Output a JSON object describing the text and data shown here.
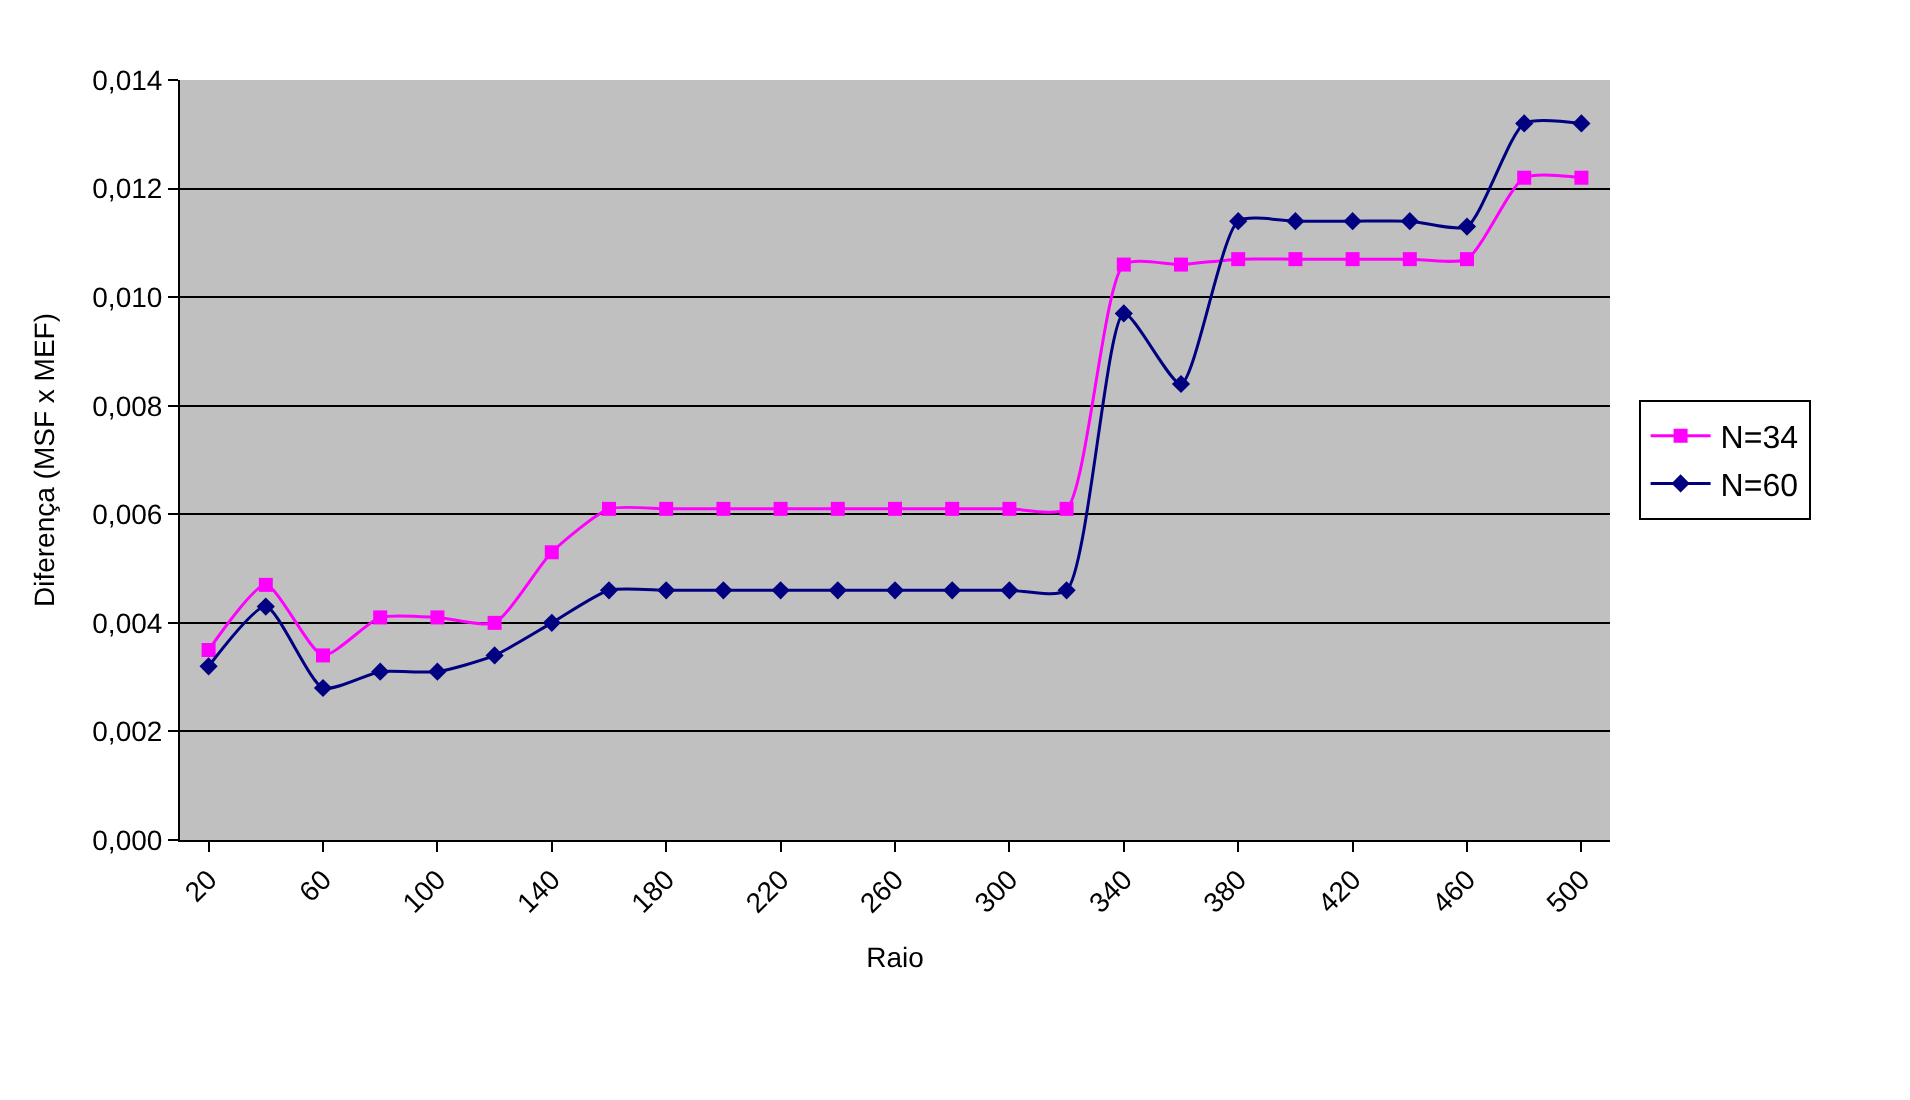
{
  "chart_data": {
    "type": "line",
    "xlabel": "Raio",
    "ylabel": "Diferença (MSF x MEF)",
    "categories": [
      "20",
      null,
      "60",
      null,
      "100",
      null,
      "140",
      null,
      "180",
      null,
      "220",
      null,
      "260",
      null,
      "300",
      null,
      "340",
      null,
      "380",
      null,
      "420",
      null,
      "460",
      null,
      "500"
    ],
    "series": [
      {
        "name": "N=34",
        "color": "#ff00ff",
        "marker": "square",
        "values": [
          0.0035,
          0.0047,
          0.0034,
          0.0041,
          0.0041,
          0.004,
          0.0053,
          0.0061,
          0.0061,
          0.0061,
          0.0061,
          0.0061,
          0.0061,
          0.0061,
          0.0061,
          0.0061,
          0.0106,
          0.0106,
          0.0107,
          0.0107,
          0.0107,
          0.0107,
          0.0107,
          0.0122,
          0.0122
        ]
      },
      {
        "name": "N=60",
        "color": "#000080",
        "marker": "diamond",
        "values": [
          0.0032,
          0.0043,
          0.0028,
          0.0031,
          0.0031,
          0.0034,
          0.004,
          0.0046,
          0.0046,
          0.0046,
          0.0046,
          0.0046,
          0.0046,
          0.0046,
          0.0046,
          0.0046,
          0.0097,
          0.0084,
          0.0114,
          0.0114,
          0.0114,
          0.0114,
          0.0113,
          0.0132,
          0.0132
        ]
      }
    ],
    "ylim": [
      0,
      0.014
    ],
    "yticks": [
      {
        "value": 0,
        "label": "0,000"
      },
      {
        "value": 0.002,
        "label": "0,002"
      },
      {
        "value": 0.004,
        "label": "0,004"
      },
      {
        "value": 0.006,
        "label": "0,006"
      },
      {
        "value": 0.008,
        "label": "0,008"
      },
      {
        "value": 0.01,
        "label": "0,010"
      },
      {
        "value": 0.012,
        "label": "0,012"
      },
      {
        "value": 0.014,
        "label": "0,014"
      }
    ],
    "grid": "y",
    "legend": "right"
  }
}
